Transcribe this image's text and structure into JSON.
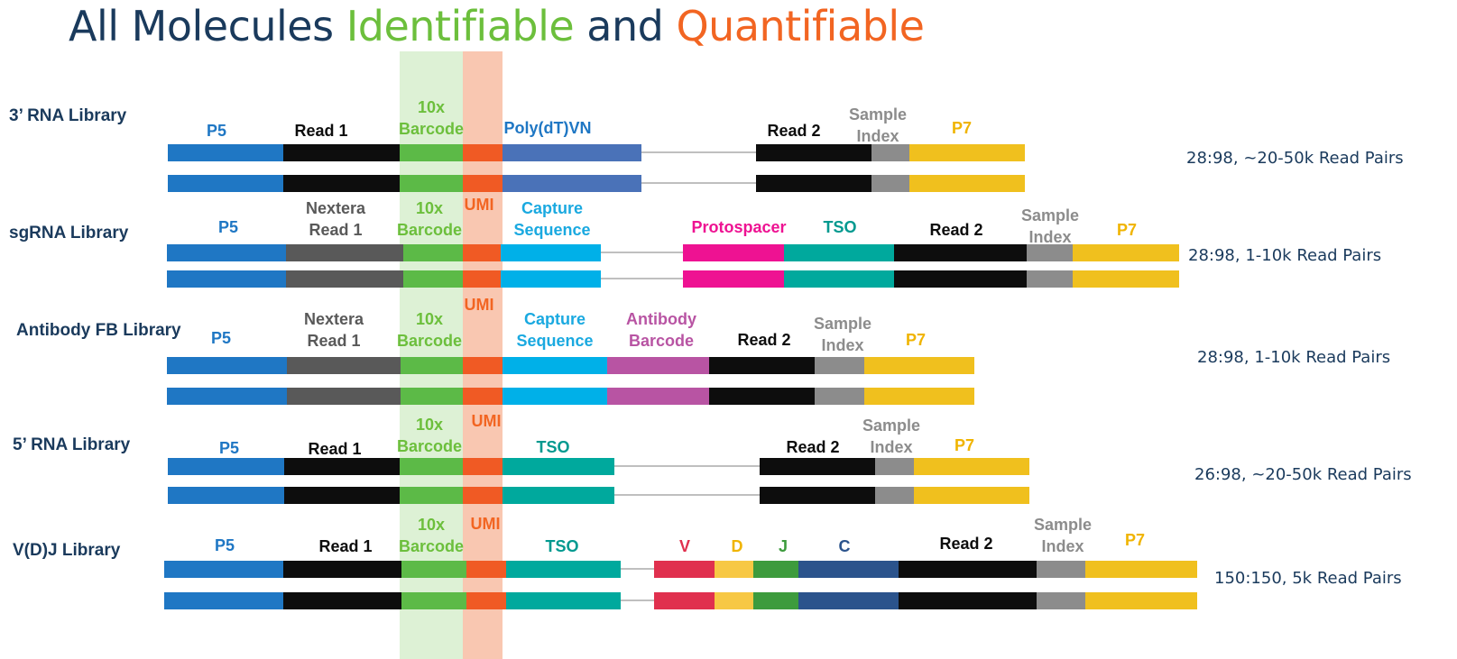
{
  "title": {
    "part1": "All Molecules ",
    "part2": "Identifiable",
    "part3": " and ",
    "part4": "Quantifiable"
  },
  "colors": {
    "p5": "#1f77c4",
    "black": "#0d0d0d",
    "barcode": "#5cba47",
    "umi": "#f05a24",
    "polyT": "#4a72b8",
    "gray_dark": "#595959",
    "gray_idx": "#8c8c8c",
    "p7": "#f0c01e",
    "capture": "#00b0e8",
    "pink": "#ee1292",
    "teal": "#00a99d",
    "antibody": "#b854a3",
    "v": "#e0304e",
    "d": "#f7c844",
    "j": "#3d9b3d",
    "c": "#2b538c",
    "line": "#bfbfbf",
    "label_blue": "#1f77c4",
    "label_green": "#6cbf3c",
    "label_orange": "#f26522",
    "label_gray": "#8c8c8c",
    "label_dark": "#595959",
    "label_capture": "#1aa9e0",
    "label_pink": "#ee1292",
    "label_teal": "#00998f",
    "label_antibody": "#b854a3",
    "label_yellow": "#f0b400",
    "label_v": "#e0304e",
    "label_j": "#3d9b3d",
    "label_c": "#2b538c"
  },
  "umi_labels": [
    "UMI",
    "UMI",
    "UMI",
    "UMI"
  ],
  "libraries": [
    {
      "name": "3’ RNA Library",
      "read_pairs": "28:98, ~20-50k Read Pairs",
      "segments": [
        "P5",
        "Read 1",
        "10x Barcode",
        "UMI",
        "Poly(dT)VN",
        "Read 2",
        "Sample Index",
        "P7"
      ],
      "labels": [
        "P5",
        "Read 1",
        "10x\nBarcode",
        "Poly(dT)VN",
        "Read 2",
        "Sample\nIndex",
        "P7"
      ]
    },
    {
      "name": "sgRNA Library",
      "read_pairs": "28:98, 1-10k Read Pairs",
      "segments": [
        "P5",
        "Nextera Read 1",
        "10x Barcode",
        "UMI",
        "Capture Sequence",
        "Protospacer",
        "TSO",
        "Read 2",
        "Sample Index",
        "P7"
      ],
      "labels": [
        "P5",
        "Nextera\nRead 1",
        "10x\nBarcode",
        "Capture\nSequence",
        "Protospacer",
        "TSO",
        "Read 2",
        "Sample\nIndex",
        "P7"
      ]
    },
    {
      "name": "Antibody FB Library",
      "read_pairs": "28:98, 1-10k Read Pairs",
      "segments": [
        "P5",
        "Nextera Read 1",
        "10x Barcode",
        "UMI",
        "Capture Sequence",
        "Antibody Barcode",
        "Read 2",
        "Sample Index",
        "P7"
      ],
      "labels": [
        "P5",
        "Nextera\nRead 1",
        "10x\nBarcode",
        "Capture\nSequence",
        "Antibody\nBarcode",
        "Read 2",
        "Sample\nIndex",
        "P7"
      ]
    },
    {
      "name": "5’ RNA Library",
      "read_pairs": "26:98, ~20-50k Read Pairs",
      "segments": [
        "P5",
        "Read 1",
        "10x Barcode",
        "UMI",
        "TSO",
        "Read 2",
        "Sample Index",
        "P7"
      ],
      "labels": [
        "P5",
        "Read 1",
        "10x\nBarcode",
        "TSO",
        "Read 2",
        "Sample\nIndex",
        "P7"
      ]
    },
    {
      "name": "V(D)J Library",
      "read_pairs": "150:150, 5k Read Pairs",
      "segments": [
        "P5",
        "Read 1",
        "10x Barcode",
        "UMI",
        "TSO",
        "V",
        "D",
        "J",
        "C",
        "Read 2",
        "Sample Index",
        "P7"
      ],
      "labels": [
        "P5",
        "Read 1",
        "10x\nBarcode",
        "TSO",
        "V",
        "D",
        "J",
        "C",
        "Read 2",
        "Sample\nIndex",
        "P7"
      ]
    }
  ]
}
